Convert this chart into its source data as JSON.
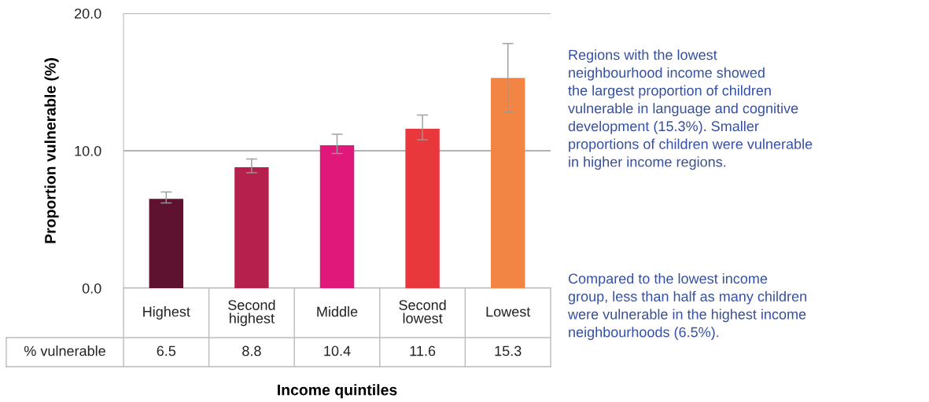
{
  "chart_data": {
    "type": "bar",
    "ylabel": "Proportion vulnerable (%)",
    "xlabel": "Income quintiles",
    "categories": [
      "Highest",
      "Second\nhighest",
      "Middle",
      "Second\nlowest",
      "Lowest"
    ],
    "values": [
      6.5,
      8.8,
      10.4,
      11.6,
      15.3
    ],
    "colors": [
      "#5e1230",
      "#b5204d",
      "#e0187a",
      "#e8383c",
      "#f28444"
    ],
    "errors": [
      [
        6.2,
        7.0
      ],
      [
        8.4,
        9.4
      ],
      [
        9.8,
        11.2
      ],
      [
        10.8,
        12.6
      ],
      [
        12.8,
        17.8
      ]
    ],
    "ylim": [
      0,
      20
    ],
    "yticks": [
      {
        "value": 0,
        "label": "0.0"
      },
      {
        "value": 10,
        "label": "10.0"
      },
      {
        "value": 20,
        "label": "20.0"
      }
    ],
    "grid": "y",
    "data_labels": true,
    "annotations": [
      "% vulnerable",
      "Regions with the lowest\nneighbourhood income showed\nthe largest proportion of children\nvulnerable in language and cognitive\ndevelopment (15.3%). Smaller\nproportions of children were vulnerable\nin higher income regions.",
      "Compared to the lowest income\ngroup, less than half as many children\nwere vulnerable in the highest income\nneighbourhoods (6.5%)."
    ]
  }
}
